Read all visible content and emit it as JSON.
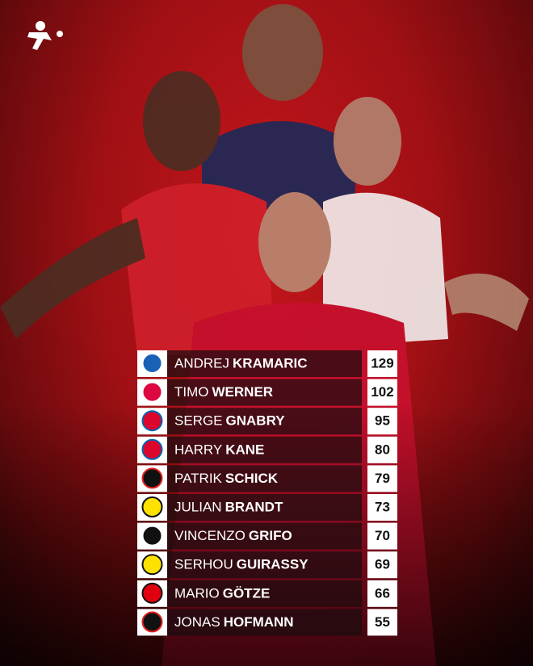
{
  "table": {
    "rows": [
      {
        "first": "ANDREJ",
        "last": "KRAMARIC",
        "value": "129"
      },
      {
        "first": "TIMO",
        "last": "WERNER",
        "value": "102"
      },
      {
        "first": "SERGE",
        "last": "GNABRY",
        "value": "95"
      },
      {
        "first": "HARRY",
        "last": "KANE",
        "value": "80"
      },
      {
        "first": "PATRIK",
        "last": "SCHICK",
        "value": "79"
      },
      {
        "first": "JULIAN",
        "last": "BRANDT",
        "value": "73"
      },
      {
        "first": "VINCENZO",
        "last": "GRIFO",
        "value": "70"
      },
      {
        "first": "SERHOU",
        "last": "GUIRASSY",
        "value": "69"
      },
      {
        "first": "MARIO",
        "last": "GÖTZE",
        "value": "66"
      },
      {
        "first": "JONAS",
        "last": "HOFMANN",
        "value": "55"
      }
    ]
  }
}
